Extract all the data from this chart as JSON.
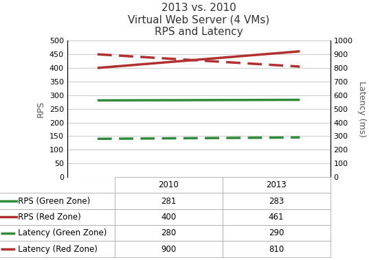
{
  "title_line1": "2013 vs. 2010",
  "title_line2": "Virtual Web Server (4 VMs)",
  "title_line3": "RPS and Latency",
  "x_labels": [
    "2010",
    "2013"
  ],
  "x_values": [
    0,
    1
  ],
  "rps_green": [
    281,
    283
  ],
  "rps_red": [
    400,
    461
  ],
  "latency_green": [
    280,
    290
  ],
  "latency_red": [
    900,
    810
  ],
  "left_ylim": [
    0,
    500
  ],
  "right_ylim": [
    0,
    1000
  ],
  "left_yticks": [
    0,
    50,
    100,
    150,
    200,
    250,
    300,
    350,
    400,
    450,
    500
  ],
  "right_yticks": [
    0,
    100,
    200,
    300,
    400,
    500,
    600,
    700,
    800,
    900,
    1000
  ],
  "color_green": "#2e8b3a",
  "color_red": "#b03030",
  "table_rows": [
    [
      "RPS (Green Zone)",
      "281",
      "283"
    ],
    [
      "RPS (Red Zone)",
      "400",
      "461"
    ],
    [
      "Latency (Green Zone)",
      "280",
      "290"
    ],
    [
      "Latency (Red Zone)",
      "900",
      "810"
    ]
  ],
  "background_color": "#ffffff",
  "grid_color": "#cccccc"
}
